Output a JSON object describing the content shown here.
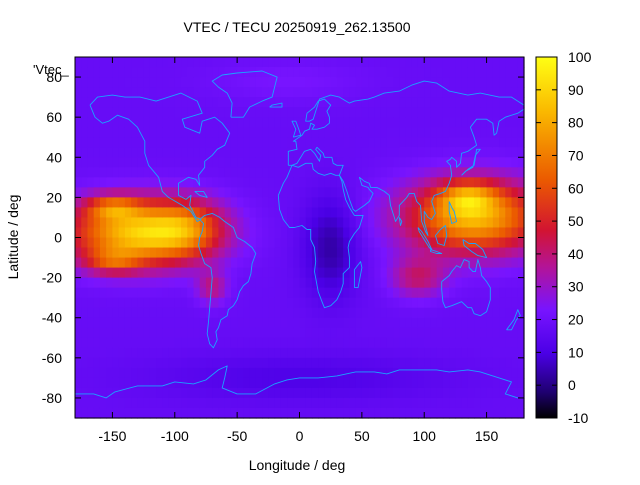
{
  "chart_data": {
    "type": "heatmap",
    "title": "VTEC / TECU 20250919_262.13500",
    "xlabel": "Longitude / deg",
    "ylabel": "Latitude / deg",
    "key_label": "'Vtec_",
    "xlim": [
      -180,
      180
    ],
    "ylim": [
      -90,
      90
    ],
    "x_ticks": [
      "-150",
      "-100",
      "-50",
      "0",
      "50",
      "100",
      "150"
    ],
    "x_tick_values": [
      -150,
      -100,
      -50,
      0,
      50,
      100,
      150
    ],
    "y_ticks": [
      "-80",
      "-60",
      "-40",
      "-20",
      "0",
      "20",
      "40",
      "60",
      "80"
    ],
    "y_tick_values": [
      -80,
      -60,
      -40,
      -20,
      0,
      20,
      40,
      60,
      80
    ],
    "colorbar_range": [
      -10,
      100
    ],
    "colorbar_ticks": [
      "-10",
      "0",
      "10",
      "20",
      "30",
      "40",
      "50",
      "60",
      "70",
      "80",
      "90",
      "100"
    ],
    "colorbar_tick_values": [
      -10,
      0,
      10,
      20,
      30,
      40,
      50,
      60,
      70,
      80,
      90,
      100
    ],
    "grid_resolution_deg": {
      "lon": 5,
      "lat": 5
    },
    "background_level_vtec": 18,
    "features": [
      {
        "lon_center": -130,
        "lat_center": 2,
        "lon_width": 55,
        "lat_width": 16,
        "peak_vtec": 68
      },
      {
        "lon_center": -150,
        "lat_center": 15,
        "lon_width": 22,
        "lat_width": 6,
        "peak_vtec": 30
      },
      {
        "lon_center": -150,
        "lat_center": -12,
        "lon_width": 22,
        "lat_width": 6,
        "peak_vtec": 24
      },
      {
        "lon_center": -90,
        "lat_center": 5,
        "lon_width": 30,
        "lat_width": 14,
        "peak_vtec": 28
      },
      {
        "lon_center": -70,
        "lat_center": -25,
        "lon_width": 12,
        "lat_width": 8,
        "peak_vtec": 20
      },
      {
        "lon_center": 140,
        "lat_center": 10,
        "lon_width": 55,
        "lat_width": 18,
        "peak_vtec": 64
      },
      {
        "lon_center": 135,
        "lat_center": 20,
        "lon_width": 22,
        "lat_width": 8,
        "peak_vtec": 28
      },
      {
        "lon_center": 95,
        "lat_center": -20,
        "lon_width": 22,
        "lat_width": 10,
        "peak_vtec": 22
      },
      {
        "lon_center": 25,
        "lat_center": -5,
        "lon_width": 22,
        "lat_width": 25,
        "peak_vtec": -15
      },
      {
        "lon_center": 0,
        "lat_center": -70,
        "lon_width": 120,
        "lat_width": 12,
        "peak_vtec": -7
      },
      {
        "lon_center": -10,
        "lat_center": 78,
        "lon_width": 60,
        "lat_width": 10,
        "peak_vtec": 5
      }
    ],
    "coastline_color": "#1aa3ff",
    "colormap": "black-purple-red-orange-yellow"
  }
}
